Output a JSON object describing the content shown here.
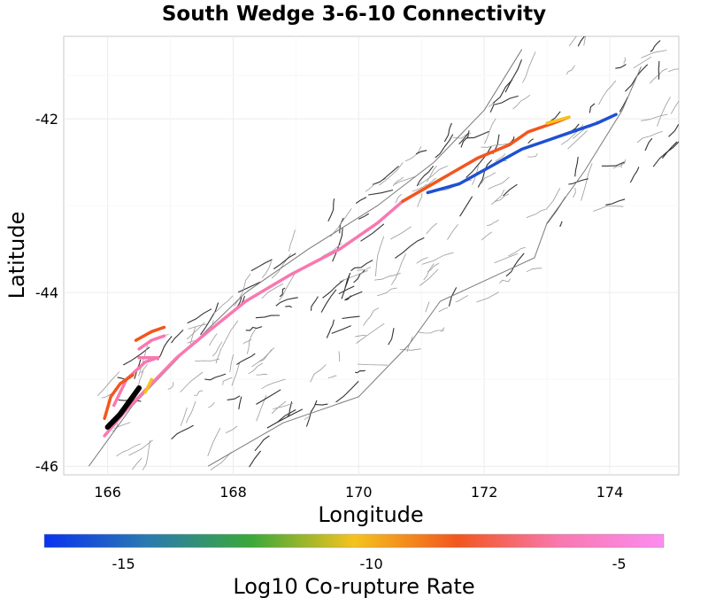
{
  "chart_data": {
    "type": "map",
    "title": "South Wedge 3-6-10 Connectivity",
    "xlabel": "Longitude",
    "ylabel": "Latitude",
    "xlim": [
      165.3,
      175.1
    ],
    "ylim": [
      -46.1,
      -41.05
    ],
    "xticks": [
      166,
      168,
      170,
      172,
      174
    ],
    "yticks": [
      -42,
      -44,
      -46
    ],
    "grid": true,
    "colorbar": {
      "label": "Log10 Co-rupture Rate",
      "range": [
        -16.6,
        -4.1
      ],
      "ticks": [
        -15,
        -10,
        -5
      ],
      "colors": [
        "#0a32f0",
        "#2a7ab0",
        "#3aa83a",
        "#f5c31e",
        "#f2561e",
        "#f978b0",
        "#fb8cf0"
      ]
    },
    "highlighted_faults": [
      {
        "color": "#000000",
        "path": [
          [
            166.0,
            -45.55
          ],
          [
            166.2,
            -45.4
          ],
          [
            166.35,
            -45.25
          ],
          [
            166.5,
            -45.1
          ]
        ]
      },
      {
        "color": "#f2561e",
        "path": [
          [
            165.95,
            -45.45
          ],
          [
            166.05,
            -45.2
          ],
          [
            166.2,
            -45.05
          ],
          [
            166.4,
            -44.95
          ]
        ]
      },
      {
        "color": "#f2561e",
        "path": [
          [
            166.45,
            -44.55
          ],
          [
            166.7,
            -44.45
          ],
          [
            166.9,
            -44.4
          ]
        ]
      },
      {
        "color": "#f5c31e",
        "path": [
          [
            166.7,
            -45.0
          ],
          [
            166.6,
            -45.15
          ]
        ]
      },
      {
        "color": "#f978b0",
        "path": [
          [
            165.95,
            -45.65
          ],
          [
            166.3,
            -45.35
          ],
          [
            166.7,
            -45.05
          ],
          [
            167.1,
            -44.75
          ],
          [
            167.6,
            -44.45
          ],
          [
            168.2,
            -44.1
          ],
          [
            168.9,
            -43.8
          ],
          [
            169.7,
            -43.5
          ],
          [
            170.3,
            -43.2
          ],
          [
            170.7,
            -42.95
          ]
        ]
      },
      {
        "color": "#f978b0",
        "path": [
          [
            166.1,
            -45.3
          ],
          [
            166.3,
            -45.0
          ],
          [
            166.6,
            -44.8
          ],
          [
            166.8,
            -44.75
          ]
        ]
      },
      {
        "color": "#f978b0",
        "path": [
          [
            166.5,
            -44.65
          ],
          [
            166.7,
            -44.55
          ],
          [
            166.9,
            -44.5
          ]
        ]
      },
      {
        "color": "#f978b0",
        "path": [
          [
            166.5,
            -44.75
          ],
          [
            166.8,
            -44.75
          ]
        ]
      },
      {
        "color": "#f2561e",
        "path": [
          [
            170.7,
            -42.95
          ],
          [
            171.3,
            -42.7
          ],
          [
            171.9,
            -42.45
          ],
          [
            172.4,
            -42.3
          ],
          [
            172.7,
            -42.15
          ],
          [
            173.1,
            -42.05
          ],
          [
            173.35,
            -41.98
          ]
        ]
      },
      {
        "color": "#f5c31e",
        "path": [
          [
            173.0,
            -42.05
          ],
          [
            173.35,
            -41.98
          ]
        ]
      },
      {
        "color": "#1e50d2",
        "path": [
          [
            171.1,
            -42.85
          ],
          [
            171.6,
            -42.75
          ],
          [
            172.1,
            -42.55
          ],
          [
            172.6,
            -42.35
          ],
          [
            173.0,
            -42.25
          ],
          [
            173.4,
            -42.15
          ],
          [
            173.8,
            -42.05
          ],
          [
            174.1,
            -41.95
          ]
        ]
      }
    ]
  }
}
